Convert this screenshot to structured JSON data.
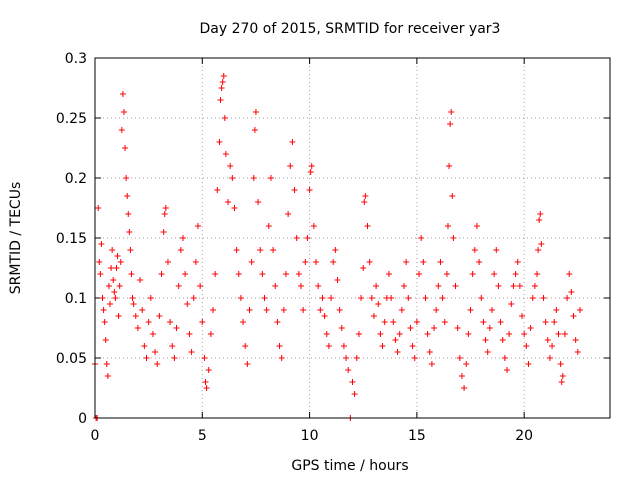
{
  "chart_data": {
    "type": "scatter",
    "title": "Day 270 of 2015, SRMTID for receiver yar3",
    "xlabel": "GPS time / hours",
    "ylabel": "SRMTID / TECUs",
    "xlim": [
      0,
      24
    ],
    "ylim": [
      0,
      0.3
    ],
    "x_ticks": [
      0,
      5,
      10,
      15,
      20
    ],
    "x_tick_labels": [
      "0",
      "5",
      "10",
      "15",
      "20"
    ],
    "y_ticks": [
      0,
      0.05,
      0.1,
      0.15,
      0.2,
      0.25,
      0.3
    ],
    "y_tick_labels": [
      "0",
      "0.05",
      "0.1",
      "0.15",
      "0.2",
      "0.25",
      "0.3"
    ],
    "grid": true,
    "marker": "plus",
    "color": "#ff0000",
    "series": [
      {
        "name": "SRMTID",
        "points": [
          [
            0.0,
            0.045
          ],
          [
            0.05,
            0.0
          ],
          [
            0.1,
            0.0
          ],
          [
            0.15,
            0.175
          ],
          [
            0.2,
            0.13
          ],
          [
            0.25,
            0.12
          ],
          [
            0.3,
            0.145
          ],
          [
            0.35,
            0.1
          ],
          [
            0.4,
            0.09
          ],
          [
            0.45,
            0.08
          ],
          [
            0.5,
            0.065
          ],
          [
            0.55,
            0.045
          ],
          [
            0.6,
            0.035
          ],
          [
            0.65,
            0.11
          ],
          [
            0.7,
            0.095
          ],
          [
            0.75,
            0.125
          ],
          [
            0.8,
            0.14
          ],
          [
            0.85,
            0.115
          ],
          [
            0.9,
            0.105
          ],
          [
            0.95,
            0.1
          ],
          [
            1.0,
            0.125
          ],
          [
            1.05,
            0.135
          ],
          [
            1.1,
            0.085
          ],
          [
            1.15,
            0.11
          ],
          [
            1.2,
            0.13
          ],
          [
            1.25,
            0.24
          ],
          [
            1.3,
            0.27
          ],
          [
            1.35,
            0.255
          ],
          [
            1.4,
            0.225
          ],
          [
            1.45,
            0.2
          ],
          [
            1.5,
            0.185
          ],
          [
            1.55,
            0.17
          ],
          [
            1.6,
            0.155
          ],
          [
            1.65,
            0.14
          ],
          [
            1.7,
            0.12
          ],
          [
            1.75,
            0.1
          ],
          [
            1.8,
            0.095
          ],
          [
            1.9,
            0.085
          ],
          [
            2.0,
            0.075
          ],
          [
            2.1,
            0.115
          ],
          [
            2.2,
            0.09
          ],
          [
            2.3,
            0.06
          ],
          [
            2.4,
            0.05
          ],
          [
            2.5,
            0.08
          ],
          [
            2.6,
            0.1
          ],
          [
            2.7,
            0.07
          ],
          [
            2.8,
            0.055
          ],
          [
            2.9,
            0.045
          ],
          [
            3.0,
            0.085
          ],
          [
            3.1,
            0.12
          ],
          [
            3.2,
            0.155
          ],
          [
            3.25,
            0.17
          ],
          [
            3.3,
            0.175
          ],
          [
            3.4,
            0.13
          ],
          [
            3.5,
            0.08
          ],
          [
            3.6,
            0.06
          ],
          [
            3.7,
            0.05
          ],
          [
            3.8,
            0.075
          ],
          [
            3.9,
            0.11
          ],
          [
            4.0,
            0.14
          ],
          [
            4.1,
            0.15
          ],
          [
            4.2,
            0.12
          ],
          [
            4.3,
            0.095
          ],
          [
            4.4,
            0.07
          ],
          [
            4.5,
            0.055
          ],
          [
            4.6,
            0.1
          ],
          [
            4.7,
            0.13
          ],
          [
            4.8,
            0.16
          ],
          [
            4.9,
            0.11
          ],
          [
            5.0,
            0.08
          ],
          [
            5.1,
            0.05
          ],
          [
            5.15,
            0.03
          ],
          [
            5.2,
            0.025
          ],
          [
            5.3,
            0.04
          ],
          [
            5.4,
            0.07
          ],
          [
            5.5,
            0.09
          ],
          [
            5.6,
            0.12
          ],
          [
            5.7,
            0.19
          ],
          [
            5.8,
            0.23
          ],
          [
            5.85,
            0.265
          ],
          [
            5.9,
            0.275
          ],
          [
            5.95,
            0.28
          ],
          [
            6.0,
            0.285
          ],
          [
            6.05,
            0.25
          ],
          [
            6.1,
            0.22
          ],
          [
            6.2,
            0.18
          ],
          [
            6.3,
            0.21
          ],
          [
            6.4,
            0.2
          ],
          [
            6.5,
            0.175
          ],
          [
            6.6,
            0.14
          ],
          [
            6.7,
            0.12
          ],
          [
            6.8,
            0.1
          ],
          [
            6.9,
            0.08
          ],
          [
            7.0,
            0.06
          ],
          [
            7.1,
            0.045
          ],
          [
            7.2,
            0.09
          ],
          [
            7.3,
            0.13
          ],
          [
            7.4,
            0.2
          ],
          [
            7.45,
            0.24
          ],
          [
            7.5,
            0.255
          ],
          [
            7.6,
            0.18
          ],
          [
            7.7,
            0.14
          ],
          [
            7.8,
            0.12
          ],
          [
            7.9,
            0.1
          ],
          [
            8.0,
            0.09
          ],
          [
            8.1,
            0.16
          ],
          [
            8.2,
            0.2
          ],
          [
            8.3,
            0.14
          ],
          [
            8.4,
            0.11
          ],
          [
            8.5,
            0.08
          ],
          [
            8.6,
            0.06
          ],
          [
            8.7,
            0.05
          ],
          [
            8.8,
            0.09
          ],
          [
            8.9,
            0.12
          ],
          [
            9.0,
            0.17
          ],
          [
            9.1,
            0.21
          ],
          [
            9.2,
            0.23
          ],
          [
            9.3,
            0.19
          ],
          [
            9.4,
            0.15
          ],
          [
            9.5,
            0.12
          ],
          [
            9.6,
            0.11
          ],
          [
            9.7,
            0.09
          ],
          [
            9.8,
            0.13
          ],
          [
            9.9,
            0.15
          ],
          [
            10.0,
            0.19
          ],
          [
            10.05,
            0.205
          ],
          [
            10.1,
            0.21
          ],
          [
            10.2,
            0.16
          ],
          [
            10.3,
            0.13
          ],
          [
            10.4,
            0.11
          ],
          [
            10.5,
            0.09
          ],
          [
            10.6,
            0.1
          ],
          [
            10.7,
            0.085
          ],
          [
            10.8,
            0.07
          ],
          [
            10.9,
            0.06
          ],
          [
            11.0,
            0.1
          ],
          [
            11.1,
            0.13
          ],
          [
            11.2,
            0.14
          ],
          [
            11.3,
            0.115
          ],
          [
            11.4,
            0.09
          ],
          [
            11.5,
            0.075
          ],
          [
            11.6,
            0.06
          ],
          [
            11.7,
            0.05
          ],
          [
            11.8,
            0.04
          ],
          [
            11.9,
            0.0
          ],
          [
            12.0,
            0.03
          ],
          [
            12.1,
            0.02
          ],
          [
            12.2,
            0.05
          ],
          [
            12.3,
            0.07
          ],
          [
            12.4,
            0.1
          ],
          [
            12.5,
            0.125
          ],
          [
            12.55,
            0.18
          ],
          [
            12.6,
            0.185
          ],
          [
            12.7,
            0.16
          ],
          [
            12.8,
            0.13
          ],
          [
            12.9,
            0.1
          ],
          [
            13.0,
            0.085
          ],
          [
            13.1,
            0.11
          ],
          [
            13.2,
            0.095
          ],
          [
            13.3,
            0.07
          ],
          [
            13.4,
            0.06
          ],
          [
            13.5,
            0.08
          ],
          [
            13.6,
            0.1
          ],
          [
            13.7,
            0.12
          ],
          [
            13.8,
            0.1
          ],
          [
            13.9,
            0.08
          ],
          [
            14.0,
            0.065
          ],
          [
            14.1,
            0.055
          ],
          [
            14.2,
            0.07
          ],
          [
            14.3,
            0.09
          ],
          [
            14.4,
            0.11
          ],
          [
            14.5,
            0.13
          ],
          [
            14.6,
            0.1
          ],
          [
            14.7,
            0.075
          ],
          [
            14.8,
            0.06
          ],
          [
            14.9,
            0.05
          ],
          [
            15.0,
            0.08
          ],
          [
            15.1,
            0.12
          ],
          [
            15.2,
            0.15
          ],
          [
            15.3,
            0.13
          ],
          [
            15.4,
            0.1
          ],
          [
            15.5,
            0.07
          ],
          [
            15.6,
            0.055
          ],
          [
            15.7,
            0.045
          ],
          [
            15.8,
            0.075
          ],
          [
            15.9,
            0.09
          ],
          [
            16.0,
            0.11
          ],
          [
            16.1,
            0.13
          ],
          [
            16.2,
            0.1
          ],
          [
            16.3,
            0.08
          ],
          [
            16.4,
            0.12
          ],
          [
            16.45,
            0.16
          ],
          [
            16.5,
            0.21
          ],
          [
            16.55,
            0.245
          ],
          [
            16.6,
            0.255
          ],
          [
            16.65,
            0.185
          ],
          [
            16.7,
            0.15
          ],
          [
            16.8,
            0.11
          ],
          [
            16.9,
            0.075
          ],
          [
            17.0,
            0.05
          ],
          [
            17.1,
            0.035
          ],
          [
            17.2,
            0.025
          ],
          [
            17.3,
            0.045
          ],
          [
            17.4,
            0.07
          ],
          [
            17.5,
            0.09
          ],
          [
            17.6,
            0.12
          ],
          [
            17.7,
            0.14
          ],
          [
            17.8,
            0.16
          ],
          [
            17.9,
            0.13
          ],
          [
            18.0,
            0.1
          ],
          [
            18.1,
            0.08
          ],
          [
            18.2,
            0.065
          ],
          [
            18.3,
            0.055
          ],
          [
            18.4,
            0.075
          ],
          [
            18.5,
            0.09
          ],
          [
            18.6,
            0.12
          ],
          [
            18.7,
            0.14
          ],
          [
            18.8,
            0.11
          ],
          [
            18.9,
            0.08
          ],
          [
            19.0,
            0.065
          ],
          [
            19.1,
            0.05
          ],
          [
            19.2,
            0.04
          ],
          [
            19.3,
            0.07
          ],
          [
            19.4,
            0.095
          ],
          [
            19.5,
            0.11
          ],
          [
            19.6,
            0.12
          ],
          [
            19.7,
            0.13
          ],
          [
            19.8,
            0.11
          ],
          [
            19.9,
            0.085
          ],
          [
            20.0,
            0.07
          ],
          [
            20.1,
            0.06
          ],
          [
            20.2,
            0.045
          ],
          [
            20.3,
            0.075
          ],
          [
            20.4,
            0.1
          ],
          [
            20.5,
            0.11
          ],
          [
            20.6,
            0.12
          ],
          [
            20.65,
            0.14
          ],
          [
            20.7,
            0.165
          ],
          [
            20.75,
            0.17
          ],
          [
            20.8,
            0.145
          ],
          [
            20.9,
            0.1
          ],
          [
            21.0,
            0.08
          ],
          [
            21.1,
            0.065
          ],
          [
            21.2,
            0.05
          ],
          [
            21.3,
            0.06
          ],
          [
            21.4,
            0.08
          ],
          [
            21.5,
            0.09
          ],
          [
            21.6,
            0.07
          ],
          [
            21.7,
            0.045
          ],
          [
            21.75,
            0.03
          ],
          [
            21.8,
            0.035
          ],
          [
            21.9,
            0.07
          ],
          [
            22.0,
            0.1
          ],
          [
            22.1,
            0.12
          ],
          [
            22.2,
            0.105
          ],
          [
            22.3,
            0.085
          ],
          [
            22.4,
            0.065
          ],
          [
            22.5,
            0.055
          ],
          [
            22.6,
            0.09
          ]
        ]
      }
    ]
  }
}
